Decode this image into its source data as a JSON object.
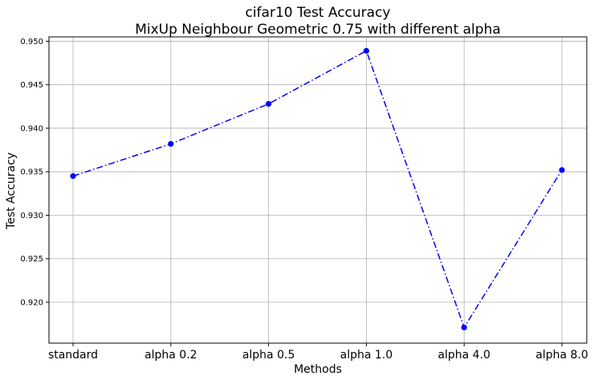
{
  "chart_data": {
    "type": "line",
    "title": "cifar10 Test Accuracy",
    "subtitle": "MixUp Neighbour Geometric 0.75 with different alpha",
    "xlabel": "Methods",
    "ylabel": "Test Accuracy",
    "categories": [
      "standard",
      "alpha 0.2",
      "alpha 0.5",
      "alpha 1.0",
      "alpha 4.0",
      "alpha 8.0"
    ],
    "series": [
      {
        "values": [
          0.9345,
          0.9382,
          0.9428,
          0.9489,
          0.9171,
          0.9352
        ],
        "color": "#0000ff",
        "line_style": "dash-dot",
        "marker": "circle"
      }
    ],
    "ylim": [
      0.9153,
      0.9505
    ],
    "yticks": [
      0.92,
      0.925,
      0.93,
      0.935,
      0.94,
      0.945,
      0.95
    ],
    "ytick_labels": [
      "0.920",
      "0.925",
      "0.930",
      "0.935",
      "0.940",
      "0.945",
      "0.950"
    ],
    "grid": true
  }
}
